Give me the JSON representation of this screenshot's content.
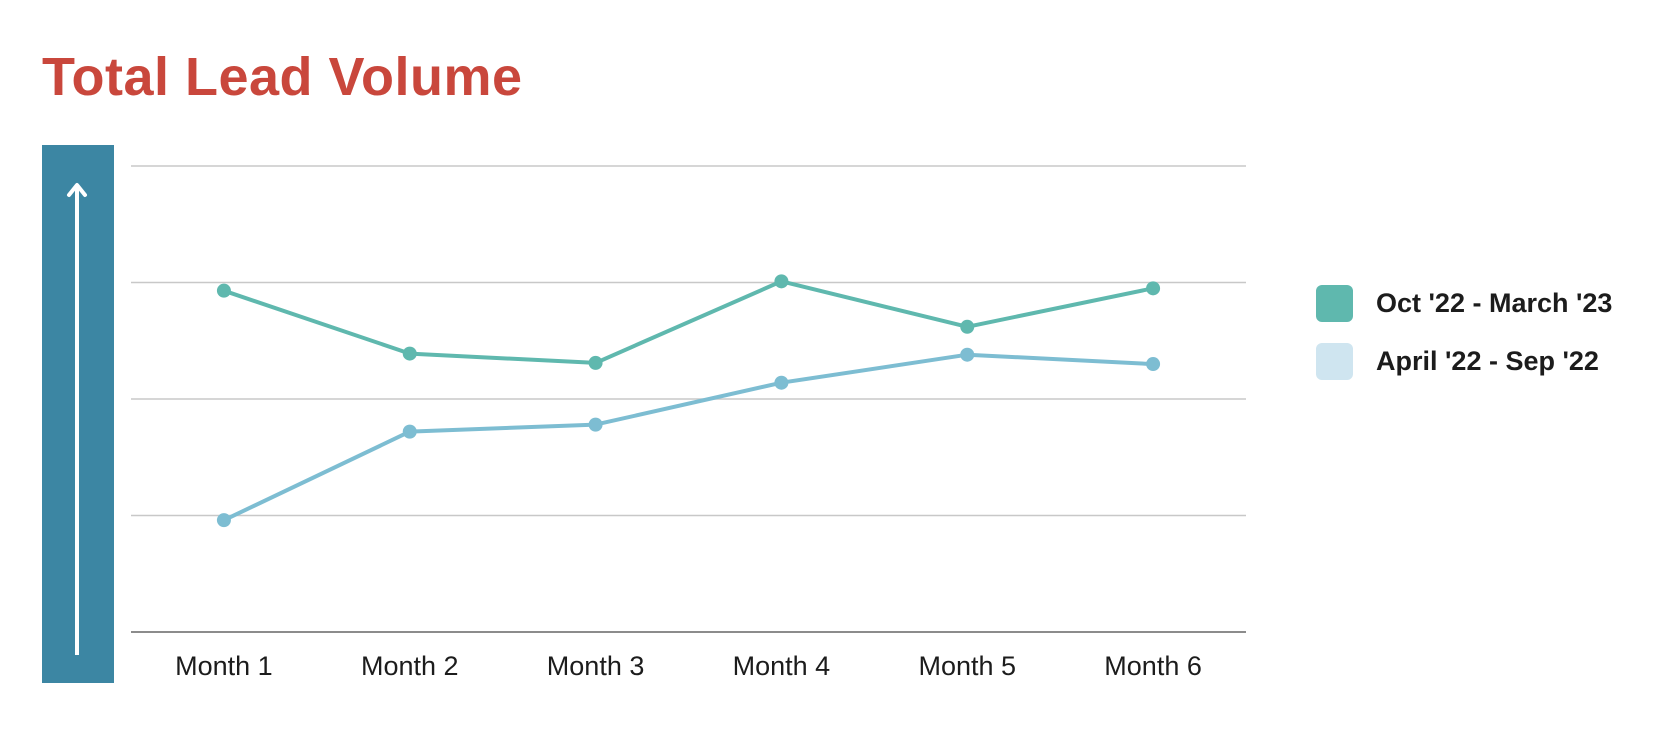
{
  "chart_data": {
    "type": "line",
    "title": "Total Lead Volume",
    "xlabel": "",
    "ylabel": "",
    "categories": [
      "Month 1",
      "Month 2",
      "Month 3",
      "Month 4",
      "Month 5",
      "Month 6"
    ],
    "ylim": [
      0,
      4
    ],
    "grid": true,
    "legend_position": "right",
    "series": [
      {
        "name": "Oct '22 - March '23",
        "values": [
          2.93,
          2.39,
          2.31,
          3.01,
          2.62,
          2.95
        ],
        "color": "#5fb8ae"
      },
      {
        "name": "April '22 - Sep '22",
        "values": [
          0.96,
          1.72,
          1.78,
          2.14,
          2.38,
          2.3
        ],
        "color": "#7dbdd2"
      }
    ]
  },
  "colors": {
    "title": "#c9473c",
    "axis_bar": "#3c86a3",
    "arrow": "#ffffff",
    "gridline": "#c8c8c8",
    "baseline": "#8c8c8c",
    "legend_swatch_1": "#5fb8ae",
    "legend_swatch_2": "#cfe5f0"
  },
  "icons": {
    "axis_arrow": "up-arrow-icon"
  }
}
